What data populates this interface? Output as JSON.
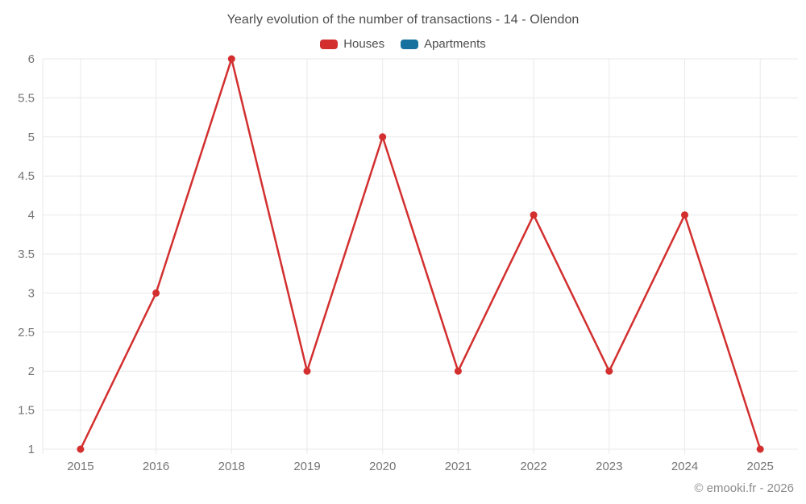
{
  "page": {
    "title": "Yearly evolution of the number of transactions - 14 - Olendon",
    "footer": "© emooki.fr - 2026"
  },
  "legend": {
    "items": [
      {
        "label": "Houses",
        "color": "#d32f2f"
      },
      {
        "label": "Apartments",
        "color": "#17719f"
      }
    ]
  },
  "colors": {
    "background": "#ffffff",
    "grid": "#e9e9e9",
    "tick_label": "#757575",
    "title_text": "#4d4d4d",
    "footer_text": "#8c8c8c",
    "houses_red": "#d32f2f",
    "apartments_blue": "#17719f"
  },
  "chart_data": {
    "type": "line",
    "title": "Yearly evolution of the number of transactions - 14 - Olendon",
    "categories": [
      "2015",
      "2016",
      "2018",
      "2019",
      "2020",
      "2021",
      "2022",
      "2023",
      "2024",
      "2025"
    ],
    "series": [
      {
        "name": "Houses",
        "color": "#d32f2f",
        "values": [
          1,
          3,
          6,
          2,
          5,
          2,
          4,
          2,
          4,
          1
        ]
      },
      {
        "name": "Apartments",
        "color": "#17719f",
        "values": []
      }
    ],
    "xlabel": "",
    "ylabel": "",
    "ylim": [
      1,
      6
    ],
    "yticks": [
      1,
      1.5,
      2,
      2.5,
      3,
      3.5,
      4,
      4.5,
      5,
      5.5,
      6
    ],
    "ytick_step": 0.5,
    "grid": true,
    "legend_position": "top",
    "marker": "circle",
    "marker_radius": 4.5,
    "line_width": 2.5
  }
}
